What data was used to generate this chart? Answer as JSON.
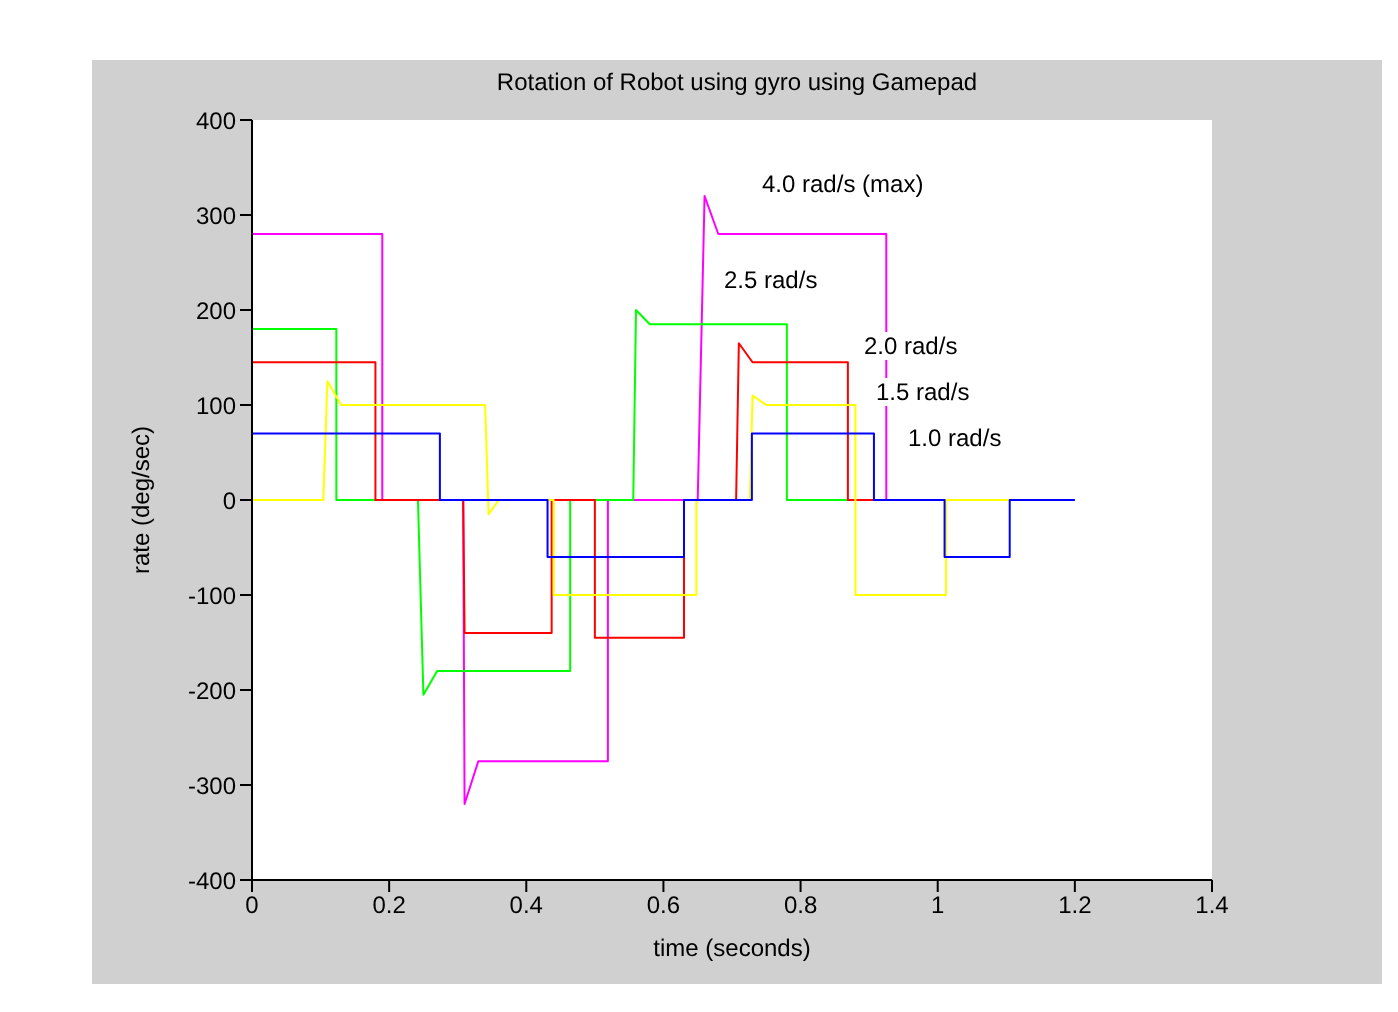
{
  "chart_data": {
    "type": "line",
    "title": "Rotation of Robot using gyro using Gamepad",
    "xlabel": "time (seconds)",
    "ylabel": "rate (deg/sec)",
    "xlim": [
      0,
      1.4
    ],
    "xticks": [
      0,
      0.2,
      0.4,
      0.6,
      0.8,
      1,
      1.2,
      1.4
    ],
    "ylim": [
      -400,
      400
    ],
    "yticks": [
      -400,
      -300,
      -200,
      -100,
      0,
      100,
      200,
      300,
      400
    ],
    "line_style": "solid",
    "series": [
      {
        "color": "#ff00ff",
        "x": [
          0,
          0.19,
          0.19,
          0.308,
          0.31,
          0.33,
          0.519,
          0.519,
          0.65,
          0.66,
          0.68,
          0.925,
          0.925,
          1.2
        ],
        "values": [
          280,
          280,
          0,
          0,
          -320,
          -275,
          -275,
          0,
          0,
          320,
          280,
          280,
          0,
          0
        ]
      },
      {
        "color": "#00ff00",
        "x": [
          0,
          0.123,
          0.123,
          0.242,
          0.25,
          0.27,
          0.464,
          0.464,
          0.556,
          0.56,
          0.58,
          0.78,
          0.78,
          1.2
        ],
        "values": [
          180,
          180,
          0,
          0,
          -205,
          -180,
          -180,
          0,
          0,
          200,
          185,
          185,
          0,
          0
        ]
      },
      {
        "color": "#ff0000",
        "x": [
          0,
          0.18,
          0.18,
          0.308,
          0.31,
          0.437,
          0.437,
          0.5,
          0.5,
          0.63,
          0.63,
          0.706,
          0.71,
          0.73,
          0.869,
          0.869,
          1.2
        ],
        "values": [
          145,
          145,
          0,
          0,
          -140,
          -140,
          0,
          0,
          -145,
          -145,
          0,
          0,
          165,
          145,
          145,
          0,
          0
        ]
      },
      {
        "color": "#ffff00",
        "x": [
          0,
          0.104,
          0.11,
          0.13,
          0.34,
          0.345,
          0.36,
          0.44,
          0.44,
          0.648,
          0.648,
          0.726,
          0.73,
          0.75,
          0.88,
          0.88,
          1.012,
          1.012,
          1.2
        ],
        "values": [
          0,
          0,
          125,
          100,
          100,
          -15,
          0,
          0,
          -100,
          -100,
          0,
          0,
          110,
          100,
          100,
          -100,
          -100,
          0,
          0
        ]
      },
      {
        "color": "#0000ff",
        "x": [
          0,
          0.274,
          0.274,
          0.431,
          0.431,
          0.63,
          0.63,
          0.729,
          0.729,
          0.907,
          0.907,
          1.01,
          1.01,
          1.105,
          1.105,
          1.2
        ],
        "values": [
          70,
          70,
          0,
          0,
          -60,
          -60,
          0,
          0,
          70,
          70,
          0,
          0,
          -60,
          -60,
          0,
          0
        ]
      }
    ],
    "annotations": [
      "4.0 rad/s (max)",
      "2.5 rad/s",
      "2.0 rad/s",
      "1.5 rad/s",
      "1.0 rad/s"
    ]
  }
}
